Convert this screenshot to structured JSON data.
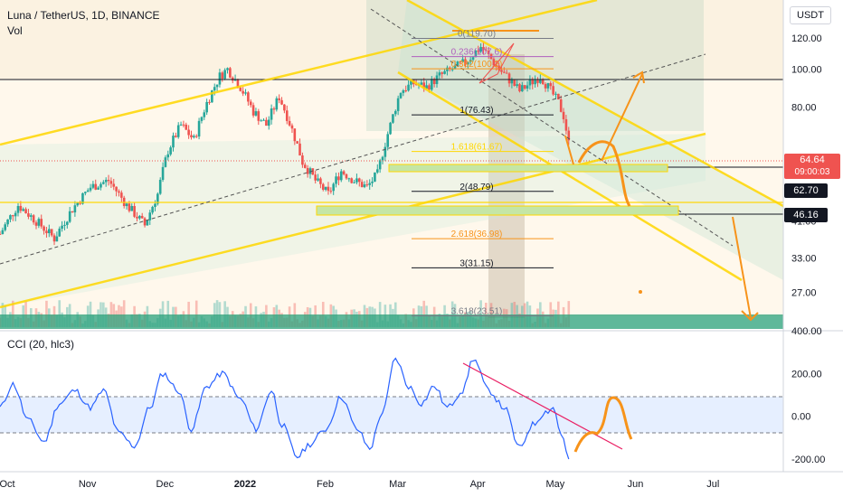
{
  "header": {
    "symbol_line": "Luna / TetherUS, 1D, BINANCE",
    "volume_label": "Vol",
    "currency_button": "USDT",
    "cci_label": "CCI (20, hlc3)"
  },
  "colors": {
    "up": "#26a69a",
    "down": "#ef5350",
    "annotation": "#ffd700",
    "projection": "#f7931a",
    "cci_line": "#2962ff",
    "cci_trend": "#e91e63",
    "price_badge": "#ef5350",
    "level_badge": "#131722"
  },
  "chart_data": [
    {
      "type": "candlestick",
      "title": "Luna / TetherUS, 1D, BINANCE",
      "x_axis": {
        "ticks": [
          "Oct",
          "Nov",
          "Dec",
          "2022",
          "Feb",
          "Mar",
          "Apr",
          "May",
          "Jun",
          "Jul"
        ],
        "range": [
          "2021-10-01",
          "2022-07-31"
        ]
      },
      "y_axis": {
        "scale": "log",
        "range": [
          22,
          150
        ],
        "ticks": [
          "120.00",
          "100.00",
          "80.00",
          "64.64",
          "62.70",
          "46.16",
          "41.00",
          "33.00",
          "27.00"
        ]
      },
      "current_price": {
        "value": "64.64",
        "countdown": "09:00:03"
      },
      "level_badges": [
        "62.70",
        "46.16"
      ],
      "fib_levels": [
        {
          "label": "0(119.70)",
          "value": 119.7
        },
        {
          "label": "0.236(107.6)",
          "value": 107.6
        },
        {
          "label": "0.382(100.2)",
          "value": 100.2
        },
        {
          "label": "1(76.43)",
          "value": 76.43
        },
        {
          "label": "1.618(61.67)",
          "value": 61.67
        },
        {
          "label": "2(48.79)",
          "value": 48.79
        },
        {
          "label": "2.618(36.98)",
          "value": 36.98
        },
        {
          "label": "3(31.15)",
          "value": 31.15
        },
        {
          "label": "3.618(23.51)",
          "value": 23.51
        }
      ],
      "price_path": [
        [
          "2021-10-01",
          38
        ],
        [
          "2021-10-08",
          45
        ],
        [
          "2021-10-15",
          41
        ],
        [
          "2021-10-22",
          37
        ],
        [
          "2021-10-29",
          44
        ],
        [
          "2021-11-05",
          50
        ],
        [
          "2021-11-12",
          52
        ],
        [
          "2021-11-19",
          45
        ],
        [
          "2021-11-26",
          40
        ],
        [
          "2021-12-01",
          48
        ],
        [
          "2021-12-05",
          62
        ],
        [
          "2021-12-10",
          72
        ],
        [
          "2021-12-15",
          66
        ],
        [
          "2021-12-20",
          82
        ],
        [
          "2021-12-25",
          96
        ],
        [
          "2021-12-28",
          100
        ],
        [
          "2022-01-02",
          90
        ],
        [
          "2022-01-07",
          78
        ],
        [
          "2022-01-12",
          72
        ],
        [
          "2022-01-17",
          85
        ],
        [
          "2022-01-22",
          70
        ],
        [
          "2022-01-26",
          58
        ],
        [
          "2022-01-31",
          52
        ],
        [
          "2022-02-05",
          48
        ],
        [
          "2022-02-10",
          55
        ],
        [
          "2022-02-15",
          52
        ],
        [
          "2022-02-20",
          50
        ],
        [
          "2022-02-24",
          54
        ],
        [
          "2022-03-01",
          72
        ],
        [
          "2022-03-05",
          88
        ],
        [
          "2022-03-10",
          92
        ],
        [
          "2022-03-15",
          90
        ],
        [
          "2022-03-20",
          96
        ],
        [
          "2022-03-25",
          100
        ],
        [
          "2022-03-30",
          104
        ],
        [
          "2022-04-05",
          114
        ],
        [
          "2022-04-08",
          108
        ],
        [
          "2022-04-12",
          100
        ],
        [
          "2022-04-16",
          94
        ],
        [
          "2022-04-20",
          88
        ],
        [
          "2022-04-24",
          92
        ],
        [
          "2022-04-28",
          96
        ],
        [
          "2022-05-02",
          88
        ],
        [
          "2022-05-05",
          82
        ],
        [
          "2022-05-07",
          76
        ],
        [
          "2022-05-09",
          64.64
        ]
      ],
      "volume_label": "Vol"
    },
    {
      "type": "line",
      "title": "CCI (20, hlc3)",
      "y_axis": {
        "range": [
          -260,
          400
        ],
        "ticks": [
          "400.00",
          "200.00",
          "0.00",
          "-200.00"
        ]
      },
      "bands": [
        100,
        -100
      ],
      "series": [
        {
          "values": [
            [
              "2021-10-01",
              40
            ],
            [
              "2021-10-06",
              150
            ],
            [
              "2021-10-12",
              -20
            ],
            [
              "2021-10-18",
              -120
            ],
            [
              "2021-10-24",
              60
            ],
            [
              "2021-10-30",
              120
            ],
            [
              "2021-11-05",
              40
            ],
            [
              "2021-11-10",
              120
            ],
            [
              "2021-11-16",
              -80
            ],
            [
              "2021-11-22",
              -140
            ],
            [
              "2021-11-28",
              40
            ],
            [
              "2021-12-03",
              200
            ],
            [
              "2021-12-09",
              120
            ],
            [
              "2021-12-14",
              -60
            ],
            [
              "2021-12-20",
              140
            ],
            [
              "2021-12-26",
              200
            ],
            [
              "2022-01-02",
              80
            ],
            [
              "2022-01-08",
              -60
            ],
            [
              "2022-01-14",
              120
            ],
            [
              "2022-01-18",
              -40
            ],
            [
              "2022-01-24",
              -190
            ],
            [
              "2022-01-29",
              -130
            ],
            [
              "2022-02-04",
              -60
            ],
            [
              "2022-02-10",
              90
            ],
            [
              "2022-02-16",
              -60
            ],
            [
              "2022-02-21",
              -150
            ],
            [
              "2022-02-26",
              20
            ],
            [
              "2022-03-03",
              270
            ],
            [
              "2022-03-08",
              140
            ],
            [
              "2022-03-13",
              60
            ],
            [
              "2022-03-18",
              140
            ],
            [
              "2022-03-23",
              40
            ],
            [
              "2022-03-29",
              120
            ],
            [
              "2022-04-02",
              270
            ],
            [
              "2022-04-08",
              120
            ],
            [
              "2022-04-14",
              40
            ],
            [
              "2022-04-20",
              -150
            ],
            [
              "2022-04-25",
              -40
            ],
            [
              "2022-04-30",
              20
            ],
            [
              "2022-05-03",
              40
            ],
            [
              "2022-05-06",
              -80
            ],
            [
              "2022-05-09",
              -200
            ]
          ]
        }
      ]
    }
  ]
}
